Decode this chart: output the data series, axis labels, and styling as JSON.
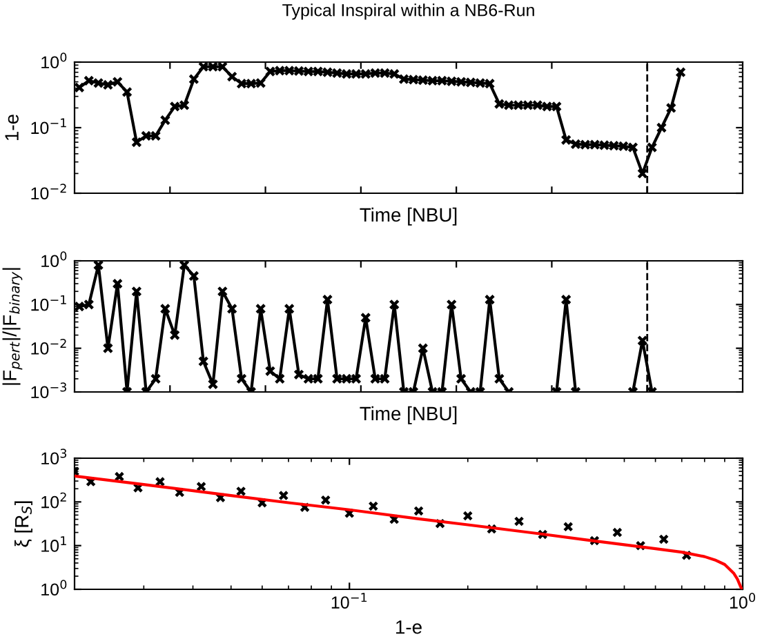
{
  "chart_data": [
    {
      "type": "line",
      "title": "Typical Inspiral within a NB6-Run",
      "xlabel": "Time [NBU]",
      "ylabel": "1-e",
      "log": "y",
      "marker": "cross",
      "line_style": "solid",
      "grid": false,
      "legend": false,
      "tick_labels": "y",
      "categories": [
        null,
        null,
        null,
        null,
        null,
        null,
        null,
        null,
        null,
        null,
        null,
        null,
        null,
        null,
        null,
        null,
        null,
        null,
        null,
        null,
        null,
        null,
        null,
        null,
        null,
        null,
        null,
        null,
        null,
        null,
        null,
        null,
        null,
        null,
        null,
        null,
        null,
        null,
        null,
        null,
        null,
        null,
        null,
        null,
        null,
        null,
        null,
        null,
        null,
        null,
        null,
        null,
        null,
        null,
        null,
        null,
        null,
        null,
        null,
        null,
        null,
        null,
        null,
        null,
        null,
        null,
        null,
        null,
        null,
        null
      ],
      "ylim": [
        0.01,
        1
      ],
      "yticks": [
        {
          "value": 0.01,
          "label": "10$^{−2}$"
        },
        {
          "value": 0.1,
          "label": "10$^{−1}$"
        },
        {
          "value": 1,
          "label": "10$^{0}$"
        }
      ],
      "series": [
        {
          "color": "#000000",
          "values": [
            0.41,
            0.52,
            0.48,
            0.45,
            0.5,
            0.35,
            0.06,
            0.075,
            0.075,
            0.13,
            0.21,
            0.22,
            0.55,
            0.85,
            0.85,
            0.85,
            0.6,
            0.47,
            0.47,
            0.48,
            0.72,
            0.74,
            0.74,
            0.73,
            0.72,
            0.72,
            0.7,
            0.68,
            0.66,
            0.66,
            0.66,
            0.68,
            0.68,
            0.66,
            0.55,
            0.54,
            0.53,
            0.52,
            0.52,
            0.51,
            0.5,
            0.49,
            0.48,
            0.47,
            0.23,
            0.22,
            0.22,
            0.22,
            0.22,
            0.21,
            0.21,
            0.065,
            0.056,
            0.055,
            0.055,
            0.054,
            0.053,
            0.052,
            0.05,
            0.02,
            0.05,
            0.1,
            0.2,
            0.7,
            null,
            null,
            null,
            null,
            null,
            null
          ]
        }
      ]
    },
    {
      "type": "line",
      "xlabel": "Time [NBU]",
      "ylabel": "|F$_{pert}$|/|F$_{binary}$|",
      "log": "y",
      "marker": "cross",
      "line_style": "solid",
      "grid": false,
      "legend": false,
      "tick_labels": "y",
      "categories": [
        null,
        null,
        null,
        null,
        null,
        null,
        null,
        null,
        null,
        null,
        null,
        null,
        null,
        null,
        null,
        null,
        null,
        null,
        null,
        null,
        null,
        null,
        null,
        null,
        null,
        null,
        null,
        null,
        null,
        null,
        null,
        null,
        null,
        null,
        null,
        null,
        null,
        null,
        null,
        null,
        null,
        null,
        null,
        null,
        null,
        null,
        null,
        null,
        null,
        null,
        null,
        null,
        null,
        null,
        null,
        null,
        null,
        null,
        null,
        null,
        null,
        null,
        null,
        null,
        null,
        null,
        null,
        null,
        null,
        null
      ],
      "ylim": [
        0.001,
        1
      ],
      "yticks": [
        {
          "value": 0.001,
          "label": "10$^{−3}$"
        },
        {
          "value": 0.01,
          "label": "10$^{−2}$"
        },
        {
          "value": 0.1,
          "label": "10$^{−1}$"
        },
        {
          "value": 1,
          "label": "10$^{0}$"
        }
      ],
      "series": [
        {
          "color": "#000000",
          "values": [
            0.09,
            0.1,
            0.8,
            0.01,
            0.3,
            0.001,
            0.2,
            0.001,
            0.002,
            0.08,
            0.02,
            0.8,
            0.45,
            0.005,
            0.0015,
            0.2,
            0.08,
            0.002,
            0.001,
            0.08,
            0.003,
            0.002,
            0.08,
            0.0025,
            0.002,
            0.002,
            0.13,
            0.002,
            0.002,
            0.002,
            0.05,
            0.002,
            0.002,
            0.1,
            0.001,
            0.001,
            0.01,
            0.001,
            0.001,
            0.1,
            0.002,
            0.001,
            0.001,
            0.13,
            0.002,
            0.001,
            null,
            null,
            null,
            null,
            0.001,
            0.13,
            0.001,
            null,
            null,
            null,
            null,
            null,
            0.001,
            0.015,
            0.001,
            null,
            null,
            null,
            null,
            null,
            null,
            null,
            null,
            null
          ]
        }
      ]
    },
    {
      "type": "scatter",
      "xlabel": "1-e",
      "ylabel": "ξ [R$_{S}$]",
      "log": "xy",
      "marker": "cross",
      "grid": false,
      "legend": false,
      "xlim": [
        0.02,
        1
      ],
      "xticks": [
        {
          "value": 0.1,
          "label": "10$^{−1}$"
        },
        {
          "value": 1,
          "label": "10$^{0}$"
        }
      ],
      "ylim": [
        1,
        1000
      ],
      "yticks": [
        {
          "value": 1,
          "label": "10$^{0}$"
        },
        {
          "value": 10,
          "label": "10$^{1}$"
        },
        {
          "value": 100,
          "label": "10$^{2}$"
        },
        {
          "value": 1000,
          "label": "10$^{3}$"
        }
      ],
      "series": [
        {
          "color": "#000000",
          "x": [
            0.02,
            0.022,
            0.026,
            0.029,
            0.033,
            0.037,
            0.042,
            0.047,
            0.053,
            0.06,
            0.068,
            0.077,
            0.087,
            0.1,
            0.115,
            0.13,
            0.15,
            0.17,
            0.2,
            0.23,
            0.27,
            0.31,
            0.36,
            0.42,
            0.48,
            0.55,
            0.63,
            0.72
          ],
          "values": [
            500,
            290,
            380,
            210,
            290,
            165,
            225,
            125,
            175,
            95,
            140,
            75,
            110,
            55,
            80,
            40,
            62,
            32,
            48,
            24,
            36,
            18,
            27,
            13,
            20,
            10,
            14,
            6
          ]
        },
        {
          "type": "line",
          "color": "#ff0000",
          "marker": "none",
          "x": [
            0.02,
            0.03,
            0.05,
            0.07,
            0.1,
            0.15,
            0.2,
            0.3,
            0.4,
            0.5,
            0.6,
            0.7,
            0.8,
            0.85,
            0.9,
            0.95,
            0.97,
            0.99,
            1.0
          ],
          "values": [
            390,
            250,
            140,
            96,
            66,
            41,
            30,
            19,
            13.5,
            10.5,
            8.5,
            7.1,
            5.6,
            4.7,
            3.7,
            2.3,
            1.7,
            1.1,
            1.0
          ]
        }
      ]
    }
  ]
}
